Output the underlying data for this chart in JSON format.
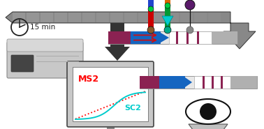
{
  "bg_color": "#ffffff",
  "ms2_color": "#ff0000",
  "sc2_color": "#00cccc",
  "ms2_label": "MS2",
  "sc2_label": "SC2",
  "strip_purple": "#8b2252",
  "strip_blue": "#1565c0",
  "strip_red": "#cc1111",
  "strip_maroon": "#8b2252",
  "strip_gray": "#b0b0b0",
  "strip_white": "#f5f5f5",
  "clock_text": "15 min",
  "arrow_dark": "#1a1a1a",
  "arrow_gray": "#909090"
}
